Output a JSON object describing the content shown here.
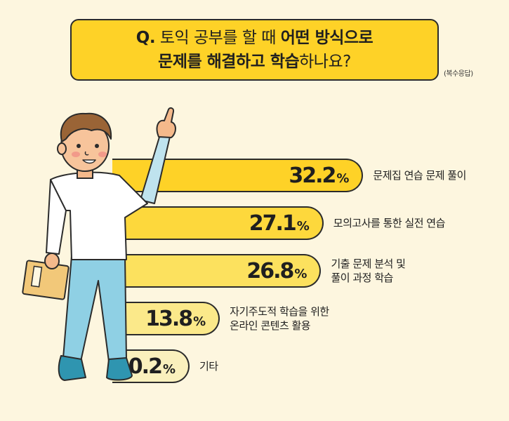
{
  "question": {
    "label": "Q.",
    "line1_plain": "토익 공부를 할 때",
    "line1_bold": "어떤 방식으로",
    "line2_bold": "문제를 해결하고 학습",
    "line2_plain": "하나요?",
    "note": "(복수응답)"
  },
  "colors": {
    "background": "#fdf6df",
    "question_box": "#fed227",
    "bar_colors": [
      "#fed227",
      "#fdd83c",
      "#fce15e",
      "#fbe98a",
      "#faf0bd"
    ],
    "outline": "#2b2b2b"
  },
  "chart_data": {
    "type": "bar",
    "orientation": "horizontal",
    "unit": "%",
    "categories": [
      [
        "문제집 연습 문제 풀이"
      ],
      [
        "모의고사를 통한 실전 연습"
      ],
      [
        "기출 문제 분석 및",
        "풀이 과정 학습"
      ],
      [
        "자기주도적 학습을 위한",
        "온라인 콘텐츠 활용"
      ],
      [
        "기타"
      ]
    ],
    "values": [
      32.2,
      27.1,
      26.8,
      13.8,
      0.2
    ]
  },
  "illustration": {
    "name": "person-pointing-up-holding-folder"
  }
}
